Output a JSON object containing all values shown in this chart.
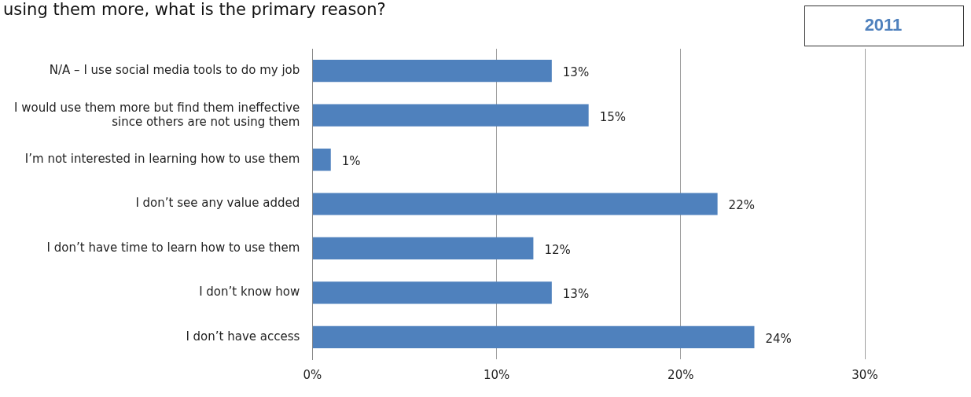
{
  "chart_data": {
    "type": "bar",
    "orientation": "horizontal",
    "title": "using them more, what is the primary reason?",
    "subtitle": "2011",
    "categories": [
      "N/A – I use social media tools to do my job",
      "I would use them more but find them ineffective since others are not using them",
      "I’m not interested in learning how to use them",
      "I don’t see any value added",
      "I don’t have time to learn how to use them",
      "I don’t know how",
      "I don’t have access"
    ],
    "values": [
      13,
      15,
      1,
      22,
      12,
      13,
      24
    ],
    "value_labels": [
      "13%",
      "15%",
      "1%",
      "22%",
      "12%",
      "13%",
      "24%"
    ],
    "color": "#4f81bd",
    "xlim": [
      0,
      30
    ],
    "xticks": [
      {
        "value": 0,
        "label": "0%"
      },
      {
        "value": 10,
        "label": "10%"
      },
      {
        "value": 20,
        "label": "20%"
      },
      {
        "value": 30,
        "label": "30%"
      }
    ],
    "grid": "x",
    "legend": false
  }
}
